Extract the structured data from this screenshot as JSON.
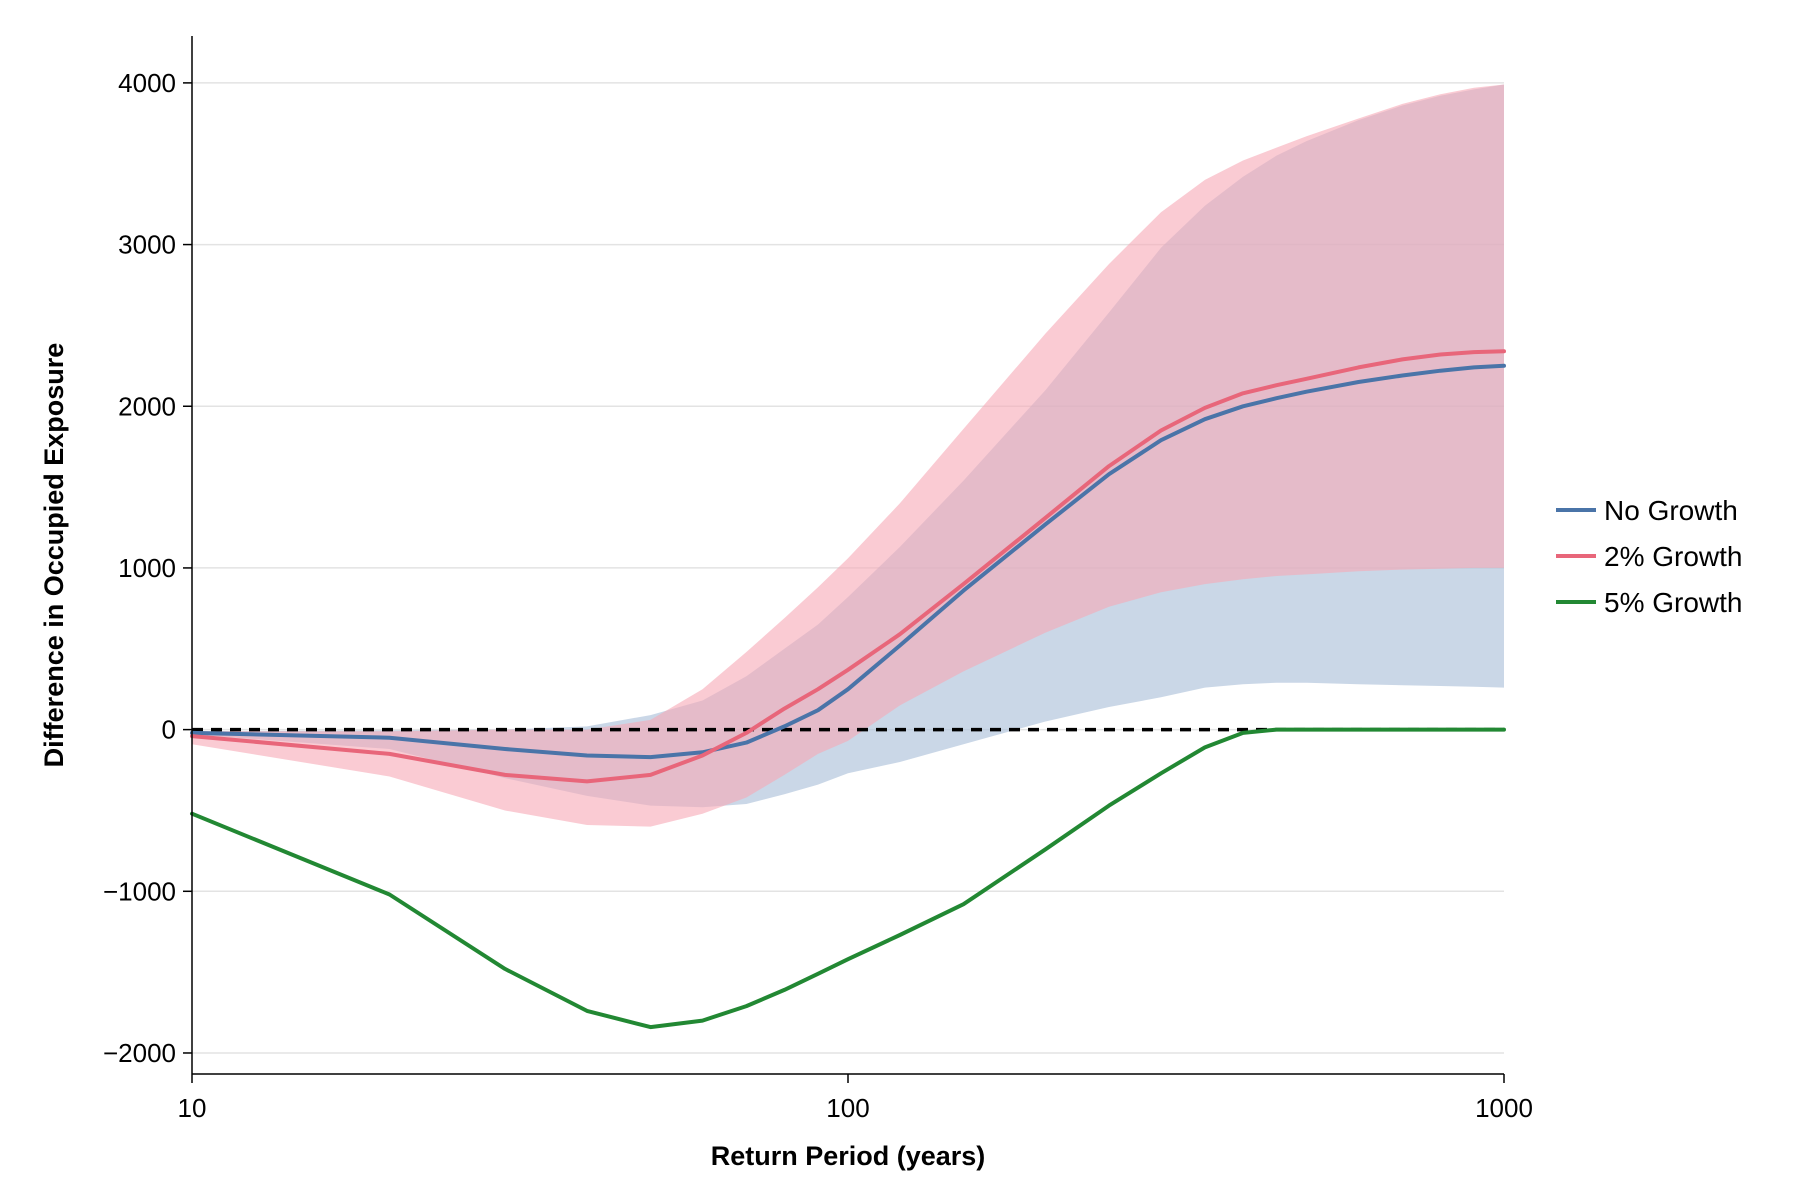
{
  "chart_data": {
    "type": "line",
    "xlabel": "Return Period (years)",
    "ylabel": "Difference in Occupied Exposure",
    "x_scale": "log",
    "xlim": [
      10,
      1000
    ],
    "ylim": [
      -2130,
      4290
    ],
    "x_ticks": [
      10,
      100,
      1000
    ],
    "x_tick_labels": [
      "10",
      "100",
      "1000"
    ],
    "y_ticks": [
      -2000,
      -1000,
      0,
      1000,
      2000,
      3000,
      4000
    ],
    "y_tick_labels": [
      "−2000",
      "−1000",
      "0",
      "1000",
      "2000",
      "3000",
      "4000"
    ],
    "grid": {
      "horizontal": true,
      "vertical": false
    },
    "legend_position": "right",
    "reference_line": {
      "y": 0,
      "style": "dashed",
      "color": "#000000"
    },
    "series": [
      {
        "name": "No Growth",
        "color": "#4a74a8",
        "band_color": "#a6bdd7",
        "x": [
          10,
          20,
          30,
          40,
          50,
          60,
          70,
          80,
          90,
          100,
          120,
          150,
          200,
          250,
          300,
          350,
          400,
          450,
          500,
          600,
          700,
          800,
          900,
          1000
        ],
        "values": [
          -20,
          -50,
          -120,
          -160,
          -170,
          -140,
          -80,
          20,
          120,
          250,
          520,
          860,
          1270,
          1580,
          1790,
          1920,
          2000,
          2050,
          2090,
          2150,
          2190,
          2220,
          2240,
          2250
        ],
        "band_upper": [
          -10,
          -5,
          0,
          20,
          90,
          180,
          330,
          500,
          650,
          820,
          1130,
          1540,
          2100,
          2580,
          2980,
          3240,
          3420,
          3550,
          3640,
          3770,
          3860,
          3920,
          3960,
          3990
        ],
        "band_lower": [
          -30,
          -120,
          -300,
          -410,
          -470,
          -480,
          -460,
          -400,
          -340,
          -270,
          -200,
          -90,
          50,
          140,
          200,
          260,
          280,
          290,
          290,
          280,
          275,
          270,
          265,
          260
        ]
      },
      {
        "name": "2% Growth",
        "color": "#e8667a",
        "band_color": "#f7a8b5",
        "x": [
          10,
          20,
          30,
          40,
          50,
          60,
          70,
          80,
          90,
          100,
          120,
          150,
          200,
          250,
          300,
          350,
          400,
          450,
          500,
          600,
          700,
          800,
          900,
          1000
        ],
        "values": [
          -40,
          -150,
          -280,
          -320,
          -280,
          -160,
          -20,
          130,
          250,
          370,
          590,
          900,
          1310,
          1630,
          1850,
          1990,
          2080,
          2130,
          2170,
          2240,
          2290,
          2320,
          2335,
          2340
        ],
        "band_upper": [
          -10,
          -10,
          0,
          0,
          60,
          250,
          480,
          690,
          880,
          1060,
          1400,
          1860,
          2450,
          2880,
          3200,
          3400,
          3520,
          3600,
          3670,
          3780,
          3870,
          3930,
          3970,
          3990
        ],
        "band_lower": [
          -90,
          -290,
          -500,
          -590,
          -600,
          -520,
          -420,
          -280,
          -150,
          -70,
          150,
          360,
          600,
          760,
          850,
          900,
          930,
          950,
          960,
          980,
          990,
          995,
          1000,
          1000
        ]
      },
      {
        "name": "5% Growth",
        "color": "#228833",
        "x": [
          10,
          20,
          30,
          40,
          50,
          60,
          70,
          80,
          90,
          100,
          120,
          150,
          200,
          250,
          300,
          350,
          400,
          450,
          500,
          600,
          700,
          800,
          900,
          1000
        ],
        "values": [
          -520,
          -1020,
          -1480,
          -1740,
          -1840,
          -1800,
          -1710,
          -1610,
          -1510,
          -1420,
          -1270,
          -1080,
          -740,
          -470,
          -270,
          -110,
          -20,
          0,
          0,
          0,
          0,
          0,
          0,
          0
        ]
      }
    ]
  }
}
